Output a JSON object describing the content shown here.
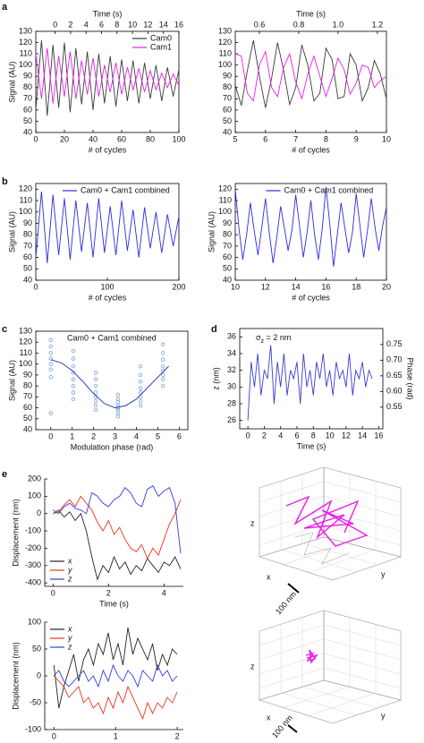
{
  "panel_labels": [
    "a",
    "b",
    "c",
    "d",
    "e"
  ],
  "chart_data": [
    {
      "type": "line",
      "x_label": "# of cycles",
      "y_label": "Signal (AU)",
      "x2_label": "Time (s)",
      "frame": true,
      "legend": "upper right",
      "x": [
        0,
        4,
        8,
        12,
        16,
        20,
        24,
        28,
        32,
        36,
        40,
        44,
        48,
        52,
        56,
        60,
        64,
        68,
        72,
        76,
        80,
        84,
        88,
        92,
        96,
        100
      ],
      "series": [
        {
          "name": "Cam0",
          "color": "#3a3a3a",
          "values": [
            60,
            122,
            55,
            118,
            62,
            120,
            58,
            115,
            65,
            112,
            60,
            110,
            66,
            108,
            63,
            105,
            68,
            104,
            66,
            102,
            70,
            100,
            68,
            98,
            72,
            96
          ]
        },
        {
          "name": "Cam1",
          "color": "#e81ee8",
          "values": [
            110,
            70,
            115,
            66,
            108,
            72,
            112,
            70,
            104,
            74,
            106,
            72,
            100,
            76,
            102,
            74,
            98,
            78,
            97,
            76,
            95,
            78,
            93,
            80,
            92,
            82
          ]
        }
      ],
      "xlim": [
        0,
        100
      ],
      "xticks": [
        0,
        20,
        40,
        60,
        80,
        100
      ],
      "ylim": [
        40,
        130
      ],
      "yticks": [
        40,
        50,
        60,
        70,
        80,
        90,
        100,
        110,
        120,
        130
      ],
      "x2lim": [
        -2.5,
        16
      ],
      "x2ticks": [
        0,
        2,
        4,
        6,
        8,
        10,
        12,
        14,
        16
      ]
    },
    {
      "type": "line",
      "x_label": "# of cycles",
      "x2_label": "Time (s)",
      "frame": true,
      "x": [
        5,
        5.2,
        5.4,
        5.6,
        5.8,
        6,
        6.2,
        6.4,
        6.6,
        6.8,
        7,
        7.2,
        7.4,
        7.6,
        7.8,
        8,
        8.2,
        8.4,
        8.6,
        8.8,
        9,
        9.2,
        9.4,
        9.6,
        9.8,
        10
      ],
      "series": [
        {
          "color": "#3a3a3a",
          "values": [
            82,
            64,
            95,
            122,
            90,
            62,
            88,
            120,
            95,
            65,
            80,
            118,
            100,
            68,
            75,
            115,
            105,
            70,
            72,
            110,
            100,
            68,
            80,
            104,
            92,
            70
          ]
        },
        {
          "color": "#e81ee8",
          "values": [
            110,
            108,
            75,
            68,
            100,
            112,
            80,
            72,
            98,
            110,
            85,
            70,
            92,
            108,
            90,
            72,
            88,
            106,
            96,
            74,
            84,
            100,
            98,
            80,
            86,
            90
          ]
        }
      ],
      "xlim": [
        5,
        10
      ],
      "xticks": [
        5,
        6,
        7,
        8,
        9,
        10
      ],
      "ylim": [
        40,
        130
      ],
      "yticks": [
        40,
        50,
        60,
        70,
        80,
        90,
        100,
        110,
        120,
        130
      ],
      "x2lim": [
        0.477,
        1.246
      ],
      "x2ticks": [
        0.6,
        0.8,
        {
          "value": 1,
          "label": "1.0"
        },
        1.2
      ]
    },
    {
      "type": "line",
      "x_label": "# of cycles",
      "y_label": "Signal (AU)",
      "frame": true,
      "legend": "upper center",
      "x": [
        0,
        8,
        16,
        24,
        32,
        40,
        48,
        56,
        64,
        72,
        80,
        88,
        96,
        104,
        112,
        120,
        128,
        136,
        144,
        152,
        160,
        168,
        176,
        184,
        192,
        200
      ],
      "series": [
        {
          "name": "Cam0 + Cam1 combined",
          "color": "#2a2ae8",
          "values": [
            60,
            118,
            55,
            115,
            62,
            112,
            58,
            110,
            65,
            108,
            60,
            112,
            64,
            105,
            62,
            110,
            66,
            102,
            60,
            104,
            68,
            100,
            64,
            98,
            70,
            96
          ]
        }
      ],
      "xlim": [
        0,
        200
      ],
      "xticks": [
        0,
        100,
        200
      ],
      "ylim": [
        40,
        125
      ],
      "yticks": [
        40,
        50,
        60,
        70,
        80,
        90,
        100,
        110,
        120
      ]
    },
    {
      "type": "line",
      "x_label": "# of cycles",
      "y_label": "Signal (AU)",
      "frame": true,
      "legend": "upper center",
      "x": [
        10,
        10.25,
        10.5,
        10.75,
        11,
        11.25,
        11.5,
        11.75,
        12,
        12.25,
        12.5,
        12.75,
        13,
        13.25,
        13.5,
        13.75,
        14,
        14.25,
        14.5,
        14.75,
        15,
        15.25,
        15.5,
        15.75,
        16,
        16.25,
        16.5,
        16.75,
        17,
        17.25,
        17.5,
        17.75,
        18,
        18.25,
        18.5,
        18.75,
        19,
        19.25,
        19.5,
        19.75,
        20
      ],
      "series": [
        {
          "name": "Cam0 + Cam1 combined",
          "color": "#2a2ae8",
          "values": [
            120,
            85,
            58,
            80,
            108,
            84,
            62,
            86,
            112,
            82,
            55,
            78,
            105,
            86,
            66,
            84,
            115,
            88,
            60,
            82,
            110,
            80,
            58,
            85,
            122,
            90,
            52,
            80,
            108,
            86,
            64,
            82,
            116,
            88,
            60,
            84,
            112,
            86,
            66,
            88,
            104
          ]
        }
      ],
      "xlim": [
        10,
        20
      ],
      "xticks": [
        10,
        12,
        14,
        16,
        18,
        20
      ],
      "ylim": [
        40,
        125
      ],
      "yticks": [
        40,
        50,
        60,
        70,
        80,
        90,
        100,
        110,
        120
      ]
    },
    {
      "type": "scatter",
      "x_label": "Modulation phase (rad)",
      "y_label": "Signal (AU)",
      "frame": true,
      "legend": "upper center",
      "x": [
        0,
        0,
        0,
        0,
        0,
        0,
        0,
        0,
        1.05,
        1.05,
        1.05,
        1.05,
        1.05,
        1.05,
        1.05,
        1.05,
        2.1,
        2.1,
        2.1,
        2.1,
        2.1,
        2.1,
        2.1,
        2.1,
        3.14,
        3.14,
        3.14,
        3.14,
        3.14,
        3.14,
        3.14,
        3.14,
        4.19,
        4.19,
        4.19,
        4.19,
        4.19,
        4.19,
        4.19,
        4.19,
        5.24,
        5.24,
        5.24,
        5.24,
        5.24,
        5.24,
        5.24,
        5.24
      ],
      "series": [
        {
          "name": "Cam0 + Cam1 combined",
          "color": "#6a8fd8",
          "values": [
            122,
            116,
            110,
            105,
            100,
            95,
            88,
            55,
            112,
            105,
            98,
            92,
            86,
            80,
            74,
            68,
            92,
            86,
            80,
            74,
            70,
            66,
            62,
            58,
            72,
            68,
            65,
            62,
            60,
            58,
            55,
            52,
            98,
            90,
            84,
            78,
            74,
            70,
            66,
            62,
            118,
            110,
            104,
            98,
            94,
            90,
            86,
            80
          ]
        }
      ],
      "fit_line": {
        "color": "#2a3fb8",
        "x": [
          0,
          0.5,
          1,
          1.5,
          2,
          2.5,
          3,
          3.5,
          4,
          4.5,
          5,
          5.5
        ],
        "values": [
          104,
          101,
          94,
          84,
          73,
          64,
          60,
          62,
          68,
          78,
          88,
          98
        ]
      },
      "xlim": [
        -0.7,
        6.4
      ],
      "xticks": [
        0,
        1,
        2,
        3,
        4,
        5,
        6
      ],
      "ylim": [
        40,
        130
      ],
      "yticks": [
        40,
        50,
        60,
        70,
        80,
        90,
        100,
        110,
        120,
        130
      ]
    },
    {
      "type": "line",
      "x_label": "Time (s)",
      "y_label": "z (nm)",
      "y2_label": "Phase (rad)",
      "frame": true,
      "annotation": {
        "symbol": "σ",
        "subscript": "z",
        "text": " = 2 nm"
      },
      "x": [
        0,
        0.4,
        0.8,
        1.2,
        1.6,
        2,
        2.4,
        2.8,
        3.2,
        3.6,
        4,
        4.4,
        4.8,
        5.2,
        5.6,
        6,
        6.4,
        6.8,
        7.2,
        7.6,
        8,
        8.4,
        8.8,
        9.2,
        9.6,
        10,
        10.4,
        10.8,
        11.2,
        11.6,
        12,
        12.4,
        12.8,
        13.2,
        13.6,
        14,
        14.4,
        14.8,
        15.2
      ],
      "series": [
        {
          "color": "#3b3bd6",
          "values": [
            26,
            33,
            30,
            34,
            29,
            32,
            31,
            35,
            28,
            33,
            30,
            34,
            29,
            32,
            31,
            33,
            28,
            34,
            30,
            32,
            29,
            33,
            31,
            34,
            30,
            32,
            29,
            33,
            31,
            32,
            30,
            34,
            29,
            32,
            31,
            33,
            30,
            32,
            31
          ]
        }
      ],
      "xlim": [
        -1,
        16.5
      ],
      "xticks": [
        0,
        2,
        4,
        6,
        8,
        10,
        12,
        14,
        16
      ],
      "ylim": [
        25,
        37
      ],
      "yticks": [
        26,
        28,
        30,
        32,
        34,
        36
      ],
      "y2lim": [
        0.481,
        0.801
      ],
      "y2ticks": [
        0.55,
        {
          "value": 0.6,
          "label": "0.60"
        },
        0.65,
        {
          "value": 0.7,
          "label": "0.70"
        },
        0.75
      ]
    },
    {
      "type": "line",
      "x_label": "Time (s)",
      "y_label": "Displacement (nm)",
      "frame": false,
      "legend": "lower left",
      "x": [
        0,
        0.2,
        0.4,
        0.6,
        0.8,
        1,
        1.2,
        1.4,
        1.6,
        1.8,
        2,
        2.2,
        2.4,
        2.6,
        2.8,
        3,
        3.2,
        3.4,
        3.6,
        3.8,
        4,
        4.2,
        4.4,
        4.6
      ],
      "series": [
        {
          "name": "x",
          "color": "#222222",
          "values": [
            0,
            20,
            -20,
            10,
            -40,
            0,
            -100,
            -250,
            -380,
            -300,
            -340,
            -250,
            -320,
            -280,
            -350,
            -300,
            -330,
            -260,
            -300,
            -340,
            -280,
            -300,
            -250,
            -320
          ]
        },
        {
          "name": "y",
          "color": "#e8341c",
          "values": [
            0,
            10,
            50,
            80,
            40,
            100,
            60,
            20,
            -50,
            -100,
            -40,
            -120,
            -80,
            -150,
            -200,
            -220,
            -180,
            -260,
            -200,
            -240,
            -150,
            -60,
            0,
            80
          ]
        },
        {
          "name": "z",
          "color": "#2c3ee0",
          "values": [
            20,
            0,
            40,
            60,
            30,
            20,
            0,
            120,
            100,
            60,
            40,
            80,
            100,
            150,
            120,
            60,
            40,
            140,
            160,
            100,
            130,
            150,
            60,
            -230
          ]
        }
      ],
      "xlim": [
        -0.3,
        4.7
      ],
      "xticks": [
        0,
        2,
        4
      ],
      "ylim": [
        -420,
        200
      ],
      "yticks": [
        -400,
        -300,
        -200,
        -100,
        0,
        100,
        200
      ]
    },
    {
      "type": "line",
      "x_label": "Time (s)",
      "y_label": "Displacement (nm)",
      "frame": false,
      "legend": "upper left",
      "x": [
        0,
        0.08,
        0.16,
        0.24,
        0.32,
        0.4,
        0.48,
        0.56,
        0.64,
        0.72,
        0.8,
        0.88,
        0.96,
        1.04,
        1.12,
        1.2,
        1.28,
        1.36,
        1.44,
        1.52,
        1.6,
        1.68,
        1.76,
        1.84,
        1.92,
        2
      ],
      "series": [
        {
          "name": "x",
          "color": "#222222",
          "values": [
            20,
            -60,
            -20,
            10,
            40,
            -10,
            30,
            50,
            20,
            60,
            40,
            80,
            30,
            60,
            20,
            90,
            40,
            70,
            50,
            30,
            60,
            10,
            40,
            20,
            50,
            40
          ]
        },
        {
          "name": "y",
          "color": "#e8341c",
          "values": [
            0,
            -10,
            -20,
            -40,
            -30,
            -20,
            -50,
            -40,
            -60,
            -50,
            -70,
            -40,
            -60,
            -30,
            -50,
            -20,
            -40,
            -60,
            -80,
            -50,
            -70,
            -50,
            -60,
            -40,
            -50,
            -30
          ]
        },
        {
          "name": "z",
          "color": "#2c3ee0",
          "values": [
            0,
            10,
            -10,
            -20,
            -10,
            0,
            10,
            -10,
            0,
            -20,
            10,
            -10,
            20,
            0,
            -10,
            10,
            0,
            -20,
            10,
            0,
            -10,
            20,
            0,
            10,
            -10,
            0
          ]
        }
      ],
      "xlim": [
        -0.15,
        2.1
      ],
      "xticks": [
        0,
        1,
        2
      ],
      "ylim": [
        -100,
        100
      ],
      "yticks": [
        -100,
        -50,
        0,
        50,
        100
      ]
    }
  ],
  "views_3d": [
    {
      "z_label": "z",
      "x_label": "x",
      "y_label": "y",
      "scale_bar": "100 nm"
    },
    {
      "z_label": "z",
      "x_label": "x",
      "y_label": "y",
      "scale_bar": "100 nm"
    }
  ]
}
